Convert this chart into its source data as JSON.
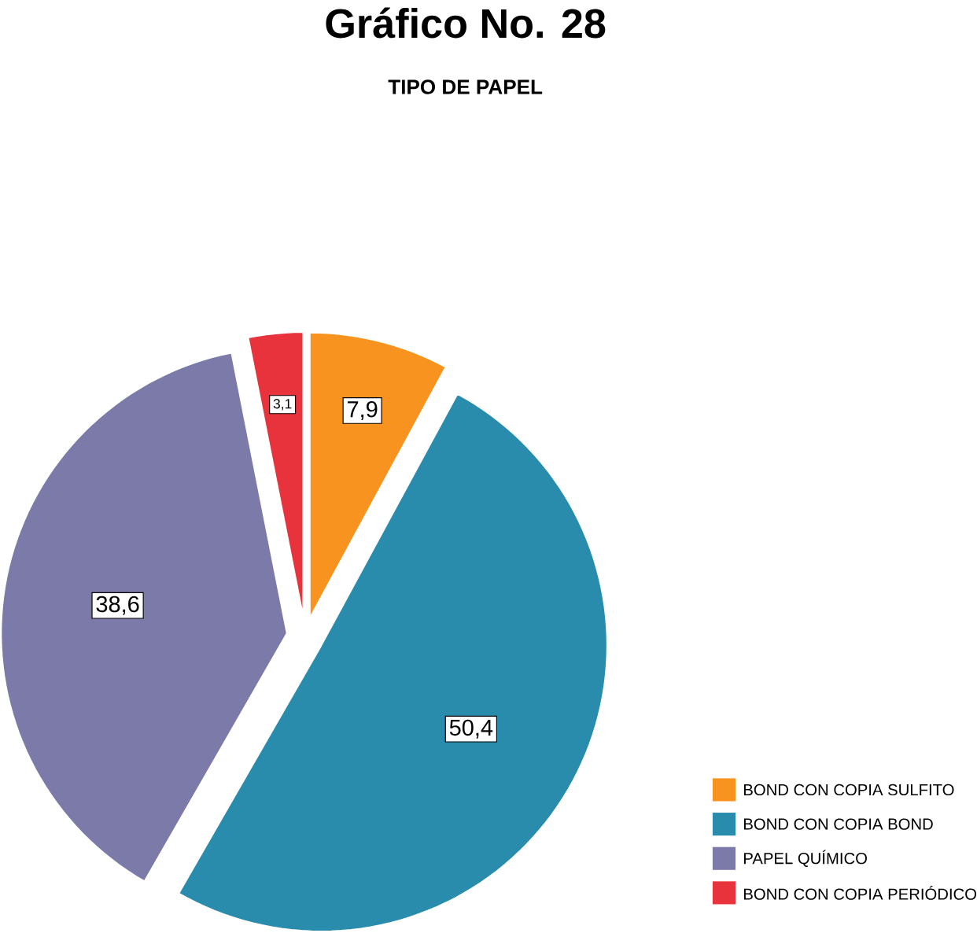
{
  "chart_data": {
    "type": "pie",
    "title": "Gráfico No. 28",
    "subtitle": "TIPO DE PAPEL",
    "categories": [
      "BOND CON COPIA SULFITO",
      "BOND CON COPIA BOND",
      "PAPEL QUÍMICO",
      "BOND CON COPIA PERIÓDICO"
    ],
    "values": [
      7.9,
      50.4,
      38.6,
      3.1
    ],
    "value_labels": [
      "7,9",
      "50,4",
      "38,6",
      "3,1"
    ],
    "colors": [
      "#f7931e",
      "#2a8cad",
      "#7b7aa8",
      "#e8323c"
    ],
    "legend": "right"
  }
}
